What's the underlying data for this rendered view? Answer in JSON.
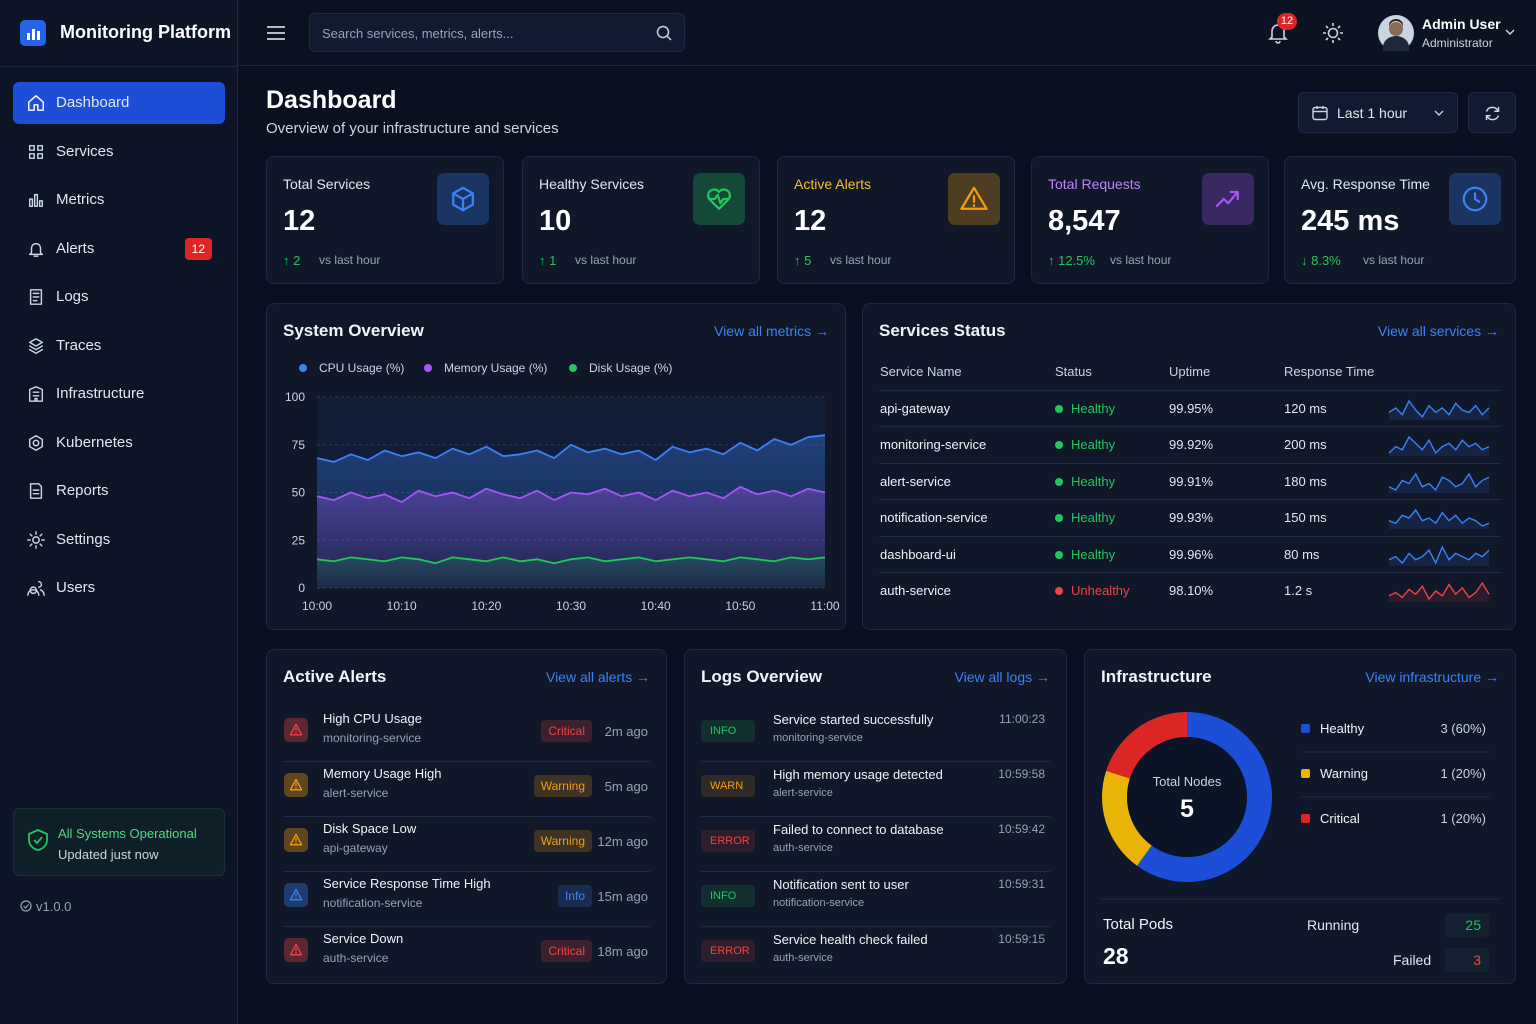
{
  "sidebar": {
    "brand": "Monitoring Platform",
    "nav": [
      {
        "label": "Dashboard"
      },
      {
        "label": "Services"
      },
      {
        "label": "Metrics"
      },
      {
        "label": "Alerts",
        "badge": "12"
      },
      {
        "label": "Logs"
      },
      {
        "label": "Traces"
      },
      {
        "label": "Infrastructure"
      },
      {
        "label": "Kubernetes"
      },
      {
        "label": "Reports"
      },
      {
        "label": "Settings"
      },
      {
        "label": "Users"
      }
    ],
    "status": {
      "title": "All Systems Operational",
      "subtitle": "Updated just now"
    },
    "version": "v1.0.0"
  },
  "topbar": {
    "search_placeholder": "Search services, metrics, alerts...",
    "notification_count": "12",
    "user": {
      "name": "Admin User",
      "role": "Administrator"
    }
  },
  "header": {
    "title": "Dashboard",
    "subtitle": "Overview of your infrastructure and services",
    "time_range": "Last 1 hour"
  },
  "stats": [
    {
      "label": "Total Services",
      "value": "12",
      "change": "↑ 2",
      "note": "vs last hour",
      "label_color": "#e5e7eb",
      "color": "#3b82f6"
    },
    {
      "label": "Healthy Services",
      "value": "10",
      "change": "↑ 1",
      "note": "vs last hour",
      "label_color": "#e5e7eb",
      "color": "#22c55e"
    },
    {
      "label": "Active Alerts",
      "value": "12",
      "change": "↑ 5",
      "note": "vs last hour",
      "label_color": "#fbbf24",
      "color": "#f59e0b"
    },
    {
      "label": "Total Requests",
      "value": "8,547",
      "change": "↑ 12.5%",
      "note": "vs last hour",
      "label_color": "#c084fc",
      "color": "#a855f7"
    },
    {
      "label": "Avg. Response Time",
      "value": "245 ms",
      "change": "↓ 8.3%",
      "note": "vs last hour",
      "label_color": "#dbeafe",
      "color": "#3b82f6"
    }
  ],
  "system_overview": {
    "title": "System Overview",
    "link": "View all metrics →",
    "chart_data": {
      "type": "line",
      "categories": [
        "10:00",
        null,
        null,
        null,
        null,
        "10:10",
        null,
        null,
        null,
        null,
        "10:20",
        null,
        null,
        null,
        null,
        "10:30",
        null,
        null,
        null,
        null,
        "10:40",
        null,
        null,
        null,
        null,
        "10:50",
        null,
        null,
        null,
        null,
        "11:00"
      ],
      "series": [
        {
          "name": "CPU Usage (%)",
          "color": "#3b82f6",
          "values": [
            68,
            66,
            70,
            67,
            72,
            69,
            71,
            68,
            73,
            70,
            74,
            69,
            70,
            72,
            68,
            75,
            71,
            73,
            70,
            72,
            67,
            74,
            71,
            73,
            70,
            76,
            72,
            78,
            75,
            79,
            80
          ]
        },
        {
          "name": "Memory Usage (%)",
          "color": "#a855f7",
          "values": [
            48,
            46,
            50,
            47,
            49,
            45,
            51,
            48,
            50,
            47,
            52,
            49,
            47,
            51,
            46,
            50,
            49,
            52,
            48,
            50,
            46,
            51,
            48,
            50,
            47,
            53,
            49,
            51,
            48,
            52,
            50
          ]
        },
        {
          "name": "Disk Usage (%)",
          "color": "#22c55e",
          "values": [
            15,
            14,
            16,
            15,
            14,
            16,
            15,
            13,
            16,
            15,
            14,
            16,
            14,
            15,
            13,
            15,
            16,
            14,
            15,
            16,
            14,
            15,
            16,
            15,
            14,
            16,
            15,
            14,
            16,
            15,
            16
          ]
        }
      ],
      "ylim": [
        0,
        100
      ],
      "yticks": [
        0,
        25,
        50,
        75,
        100
      ],
      "grid": true
    }
  },
  "services_status": {
    "title": "Services Status",
    "link": "View all services →",
    "columns": [
      "Service Name",
      "Status",
      "Uptime",
      "Response Time"
    ],
    "rows": [
      {
        "name": "api-gateway",
        "status": "Healthy",
        "uptime": "99.95%",
        "response": "120 ms",
        "color": "#22c55e",
        "trend_color": "#3b82f6",
        "trend": [
          10,
          12,
          9,
          15,
          11,
          8,
          13,
          10,
          12,
          9,
          14,
          11,
          10,
          13,
          9,
          12
        ]
      },
      {
        "name": "monitoring-service",
        "status": "Healthy",
        "uptime": "99.92%",
        "response": "200 ms",
        "color": "#22c55e",
        "trend_color": "#3b82f6",
        "trend": [
          9,
          11,
          10,
          14,
          12,
          10,
          13,
          9,
          11,
          12,
          10,
          13,
          11,
          12,
          10,
          11
        ]
      },
      {
        "name": "alert-service",
        "status": "Healthy",
        "uptime": "99.91%",
        "response": "180 ms",
        "color": "#22c55e",
        "trend_color": "#3b82f6",
        "trend": [
          10,
          9,
          12,
          11,
          14,
          10,
          11,
          9,
          13,
          12,
          10,
          11,
          14,
          10,
          12,
          13
        ]
      },
      {
        "name": "notification-service",
        "status": "Healthy",
        "uptime": "99.93%",
        "response": "150 ms",
        "color": "#22c55e",
        "trend_color": "#3b82f6",
        "trend": [
          11,
          10,
          13,
          12,
          15,
          11,
          12,
          10,
          14,
          11,
          13,
          10,
          12,
          11,
          9,
          10
        ]
      },
      {
        "name": "dashboard-ui",
        "status": "Healthy",
        "uptime": "99.96%",
        "response": "80 ms",
        "color": "#22c55e",
        "trend_color": "#3b82f6",
        "trend": [
          10,
          11,
          9,
          12,
          10,
          11,
          13,
          9,
          14,
          10,
          12,
          11,
          10,
          12,
          11,
          13
        ]
      },
      {
        "name": "auth-service",
        "status": "Unhealthy",
        "uptime": "98.10%",
        "response": "1.2 s",
        "color": "#ef4444",
        "trend_color": "#ef4444",
        "trend": [
          8,
          10,
          7,
          12,
          9,
          14,
          6,
          11,
          8,
          15,
          9,
          13,
          7,
          10,
          16,
          9
        ]
      }
    ]
  },
  "active_alerts": {
    "title": "Active Alerts",
    "link": "View all alerts →",
    "items": [
      {
        "title": "High CPU Usage",
        "service": "monitoring-service",
        "severity": "Critical",
        "time": "2m ago",
        "color": "#ef4444"
      },
      {
        "title": "Memory Usage High",
        "service": "alert-service",
        "severity": "Warning",
        "time": "5m ago",
        "color": "#f59e0b"
      },
      {
        "title": "Disk Space Low",
        "service": "api-gateway",
        "severity": "Warning",
        "time": "12m ago",
        "color": "#f59e0b"
      },
      {
        "title": "Service Response Time High",
        "service": "notification-service",
        "severity": "Info",
        "time": "15m ago",
        "color": "#3b82f6"
      },
      {
        "title": "Service Down",
        "service": "auth-service",
        "severity": "Critical",
        "time": "18m ago",
        "color": "#ef4444"
      }
    ]
  },
  "logs_overview": {
    "title": "Logs Overview",
    "link": "View all logs →",
    "items": [
      {
        "level": "INFO",
        "message": "Service started successfully",
        "service": "monitoring-service",
        "time": "11:00:23",
        "color": "#22c55e"
      },
      {
        "level": "WARN",
        "message": "High memory usage detected",
        "service": "alert-service",
        "time": "10:59:58",
        "color": "#f59e0b"
      },
      {
        "level": "ERROR",
        "message": "Failed to connect to database",
        "service": "auth-service",
        "time": "10:59:42",
        "color": "#ef4444"
      },
      {
        "level": "INFO",
        "message": "Notification sent to user",
        "service": "notification-service",
        "time": "10:59:31",
        "color": "#22c55e"
      },
      {
        "level": "ERROR",
        "message": "Service health check failed",
        "service": "auth-service",
        "time": "10:59:15",
        "color": "#ef4444"
      }
    ]
  },
  "infrastructure": {
    "title": "Infrastructure",
    "link": "View infrastructure →",
    "total_nodes": {
      "label": "Total Nodes",
      "value": "5"
    },
    "chart_data": {
      "type": "pie",
      "categories": [
        "Healthy",
        "Warning",
        "Critical"
      ],
      "values": [
        3,
        1,
        1
      ],
      "value_labels": [
        "3 (60%)",
        "1 (20%)",
        "1 (20%)"
      ],
      "colors": [
        "#1d4ed8",
        "#eab308",
        "#dc2626"
      ]
    },
    "pods": {
      "label": "Total Pods",
      "value": "28",
      "running": {
        "label": "Running",
        "value": "25"
      },
      "failed": {
        "label": "Failed",
        "value": "3"
      }
    }
  }
}
